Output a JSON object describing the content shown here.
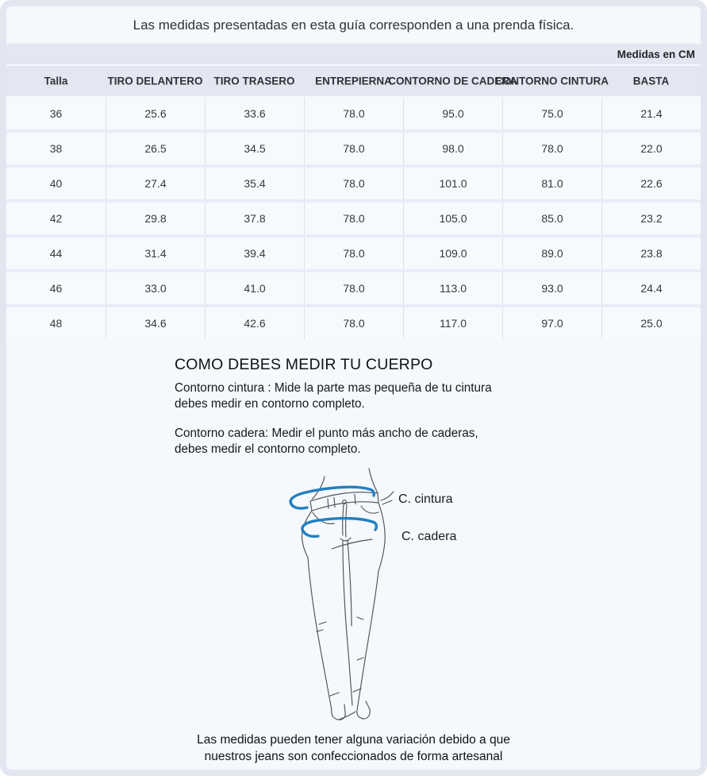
{
  "guide": {
    "caption": "Las medidas presentadas en esta guía corresponden a una prenda física.",
    "units_label": "Medidas en CM"
  },
  "table": {
    "columns": [
      "Talla",
      "TIRO DELANTERO",
      "TIRO TRASERO",
      "ENTREPIERNA",
      "CONTORNO DE CADERA",
      "CONTORNO CINTURA",
      "BASTA"
    ],
    "rows": [
      [
        "36",
        "25.6",
        "33.6",
        "78.0",
        "95.0",
        "75.0",
        "21.4"
      ],
      [
        "38",
        "26.5",
        "34.5",
        "78.0",
        "98.0",
        "78.0",
        "22.0"
      ],
      [
        "40",
        "27.4",
        "35.4",
        "78.0",
        "101.0",
        "81.0",
        "22.6"
      ],
      [
        "42",
        "29.8",
        "37.8",
        "78.0",
        "105.0",
        "85.0",
        "23.2"
      ],
      [
        "44",
        "31.4",
        "39.4",
        "78.0",
        "109.0",
        "89.0",
        "23.8"
      ],
      [
        "46",
        "33.0",
        "41.0",
        "78.0",
        "113.0",
        "93.0",
        "24.4"
      ],
      [
        "48",
        "34.6",
        "42.6",
        "78.0",
        "117.0",
        "97.0",
        "25.0"
      ]
    ]
  },
  "how_to": {
    "title": "COMO DEBES MEDIR TU CUERPO",
    "paragraphs": [
      "Contorno cintura : Mide la parte mas pequeña de tu cintura\ndebes medir en contorno completo.",
      "Contorno cadera: Medir el punto más ancho de caderas,\ndebes medir el contorno completo."
    ]
  },
  "figure": {
    "labels": {
      "waist": "C. cintura",
      "hip": "C. cadera"
    },
    "accent_color": "#2180c0",
    "line_color": "#50535a"
  },
  "footer": {
    "note_lines": [
      "Las medidas pueden tener alguna variación debido a que",
      "nuestros jeans son confeccionados de forma artesanal"
    ]
  },
  "colors": {
    "card_border": "#e1e6f1",
    "panel_bg": "#f5f8fc",
    "band_bg": "#e3e7f1",
    "cell_bg": "#f7fafd",
    "cell_border": "#d9dfec",
    "row_gap": "#e9edf6"
  }
}
